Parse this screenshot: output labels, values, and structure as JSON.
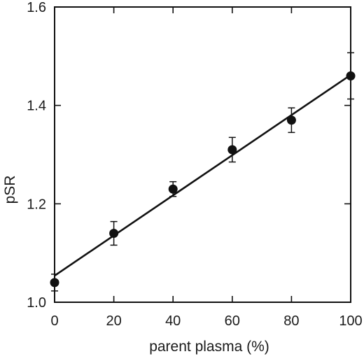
{
  "chart_data": {
    "type": "scatter",
    "xlabel": "parent plasma (%)",
    "ylabel": "pSR",
    "xlim": [
      0,
      100
    ],
    "ylim": [
      1.0,
      1.6
    ],
    "x_ticks": [
      "0",
      "20",
      "40",
      "60",
      "80",
      "100"
    ],
    "y_ticks": [
      "1.0",
      "1.2",
      "1.4",
      "1.6"
    ],
    "grid": false,
    "series": [
      {
        "points": [
          {
            "x": 0,
            "y": 1.04,
            "err": 0.017
          },
          {
            "x": 20,
            "y": 1.14,
            "err": 0.024
          },
          {
            "x": 40,
            "y": 1.23,
            "err": 0.015
          },
          {
            "x": 60,
            "y": 1.31,
            "err": 0.025
          },
          {
            "x": 80,
            "y": 1.37,
            "err": 0.025
          },
          {
            "x": 100,
            "y": 1.46,
            "err": 0.047
          }
        ]
      }
    ],
    "fit_line": {
      "x": [
        0,
        100
      ],
      "y": [
        1.054,
        1.462
      ]
    }
  }
}
